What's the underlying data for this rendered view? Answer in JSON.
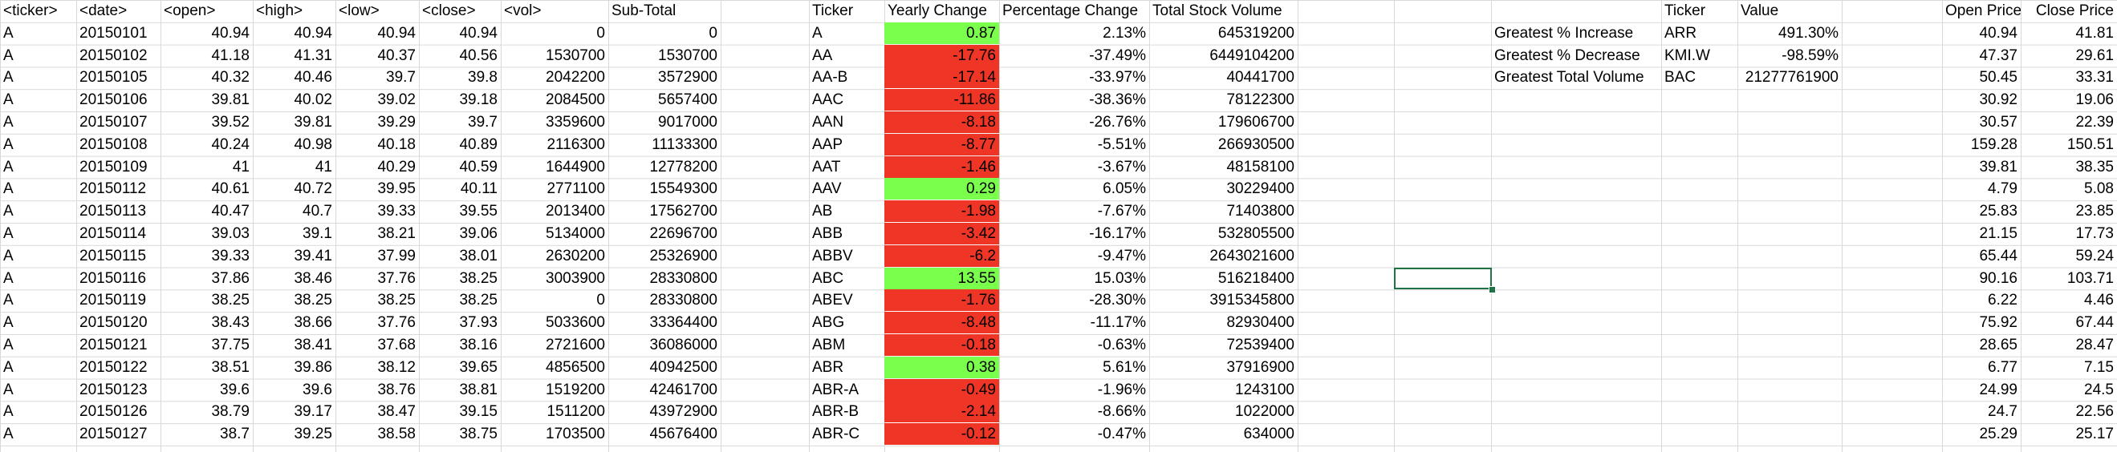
{
  "stock_headers": [
    "<ticker>",
    "<date>",
    "<open>",
    "<high>",
    "<low>",
    "<close>",
    "<vol>",
    "Sub-Total"
  ],
  "stock_rows": [
    [
      "A",
      "20150101",
      "40.94",
      "40.94",
      "40.94",
      "40.94",
      "0",
      "0"
    ],
    [
      "A",
      "20150102",
      "41.18",
      "41.31",
      "40.37",
      "40.56",
      "1530700",
      "1530700"
    ],
    [
      "A",
      "20150105",
      "40.32",
      "40.46",
      "39.7",
      "39.8",
      "2042200",
      "3572900"
    ],
    [
      "A",
      "20150106",
      "39.81",
      "40.02",
      "39.02",
      "39.18",
      "2084500",
      "5657400"
    ],
    [
      "A",
      "20150107",
      "39.52",
      "39.81",
      "39.29",
      "39.7",
      "3359600",
      "9017000"
    ],
    [
      "A",
      "20150108",
      "40.24",
      "40.98",
      "40.18",
      "40.89",
      "2116300",
      "11133300"
    ],
    [
      "A",
      "20150109",
      "41",
      "41",
      "40.29",
      "40.59",
      "1644900",
      "12778200"
    ],
    [
      "A",
      "20150112",
      "40.61",
      "40.72",
      "39.95",
      "40.11",
      "2771100",
      "15549300"
    ],
    [
      "A",
      "20150113",
      "40.47",
      "40.7",
      "39.33",
      "39.55",
      "2013400",
      "17562700"
    ],
    [
      "A",
      "20150114",
      "39.03",
      "39.1",
      "38.21",
      "39.06",
      "5134000",
      "22696700"
    ],
    [
      "A",
      "20150115",
      "39.33",
      "39.41",
      "37.99",
      "38.01",
      "2630200",
      "25326900"
    ],
    [
      "A",
      "20150116",
      "37.86",
      "38.46",
      "37.76",
      "38.25",
      "3003900",
      "28330800"
    ],
    [
      "A",
      "20150119",
      "38.25",
      "38.25",
      "38.25",
      "38.25",
      "0",
      "28330800"
    ],
    [
      "A",
      "20150120",
      "38.43",
      "38.66",
      "37.76",
      "37.93",
      "5033600",
      "33364400"
    ],
    [
      "A",
      "20150121",
      "37.75",
      "38.41",
      "37.68",
      "38.16",
      "2721600",
      "36086000"
    ],
    [
      "A",
      "20150122",
      "38.51",
      "39.86",
      "38.12",
      "39.65",
      "4856500",
      "40942500"
    ],
    [
      "A",
      "20150123",
      "39.6",
      "39.6",
      "38.76",
      "38.81",
      "1519200",
      "42461700"
    ],
    [
      "A",
      "20150126",
      "38.79",
      "39.17",
      "38.47",
      "39.15",
      "1511200",
      "43972900"
    ],
    [
      "A",
      "20150127",
      "38.7",
      "39.25",
      "38.58",
      "38.75",
      "1703500",
      "45676400"
    ]
  ],
  "summary_headers": [
    "Ticker",
    "Yearly Change",
    "Percentage Change",
    "Total Stock Volume"
  ],
  "summary_rows": [
    [
      "A",
      "0.87",
      "2.13%",
      "645319200"
    ],
    [
      "AA",
      "-17.76",
      "-37.49%",
      "6449104200"
    ],
    [
      "AA-B",
      "-17.14",
      "-33.97%",
      "40441700"
    ],
    [
      "AAC",
      "-11.86",
      "-38.36%",
      "78122300"
    ],
    [
      "AAN",
      "-8.18",
      "-26.76%",
      "179606700"
    ],
    [
      "AAP",
      "-8.77",
      "-5.51%",
      "266930500"
    ],
    [
      "AAT",
      "-1.46",
      "-3.67%",
      "48158100"
    ],
    [
      "AAV",
      "0.29",
      "6.05%",
      "30229400"
    ],
    [
      "AB",
      "-1.98",
      "-7.67%",
      "71403800"
    ],
    [
      "ABB",
      "-3.42",
      "-16.17%",
      "532805500"
    ],
    [
      "ABBV",
      "-6.2",
      "-9.47%",
      "2643021600"
    ],
    [
      "ABC",
      "13.55",
      "15.03%",
      "516218400"
    ],
    [
      "ABEV",
      "-1.76",
      "-28.30%",
      "3915345800"
    ],
    [
      "ABG",
      "-8.48",
      "-11.17%",
      "82930400"
    ],
    [
      "ABM",
      "-0.18",
      "-0.63%",
      "72539400"
    ],
    [
      "ABR",
      "0.38",
      "5.61%",
      "37916900"
    ],
    [
      "ABR-A",
      "-0.49",
      "-1.96%",
      "1243100"
    ],
    [
      "ABR-B",
      "-2.14",
      "-8.66%",
      "1022000"
    ],
    [
      "ABR-C",
      "-0.12",
      "-0.47%",
      "634000"
    ]
  ],
  "greatest_headers": [
    "Ticker",
    "Value"
  ],
  "greatest_rows": [
    [
      "Greatest % Increase",
      "ARR",
      "491.30%"
    ],
    [
      "Greatest % Decrease",
      "KMI.W",
      "-98.59%"
    ],
    [
      "Greatest Total Volume",
      "BAC",
      "21277761900"
    ]
  ],
  "price_headers": [
    "Open Price",
    "Close Price"
  ],
  "price_rows": [
    [
      "40.94",
      "41.81"
    ],
    [
      "47.37",
      "29.61"
    ],
    [
      "50.45",
      "33.31"
    ],
    [
      "30.92",
      "19.06"
    ],
    [
      "30.57",
      "22.39"
    ],
    [
      "159.28",
      "150.51"
    ],
    [
      "39.81",
      "38.35"
    ],
    [
      "4.79",
      "5.08"
    ],
    [
      "25.83",
      "23.85"
    ],
    [
      "21.15",
      "17.73"
    ],
    [
      "65.44",
      "59.24"
    ],
    [
      "90.16",
      "103.71"
    ],
    [
      "6.22",
      "4.46"
    ],
    [
      "75.92",
      "67.44"
    ],
    [
      "28.65",
      "28.47"
    ],
    [
      "6.77",
      "7.15"
    ],
    [
      "24.99",
      "24.5"
    ],
    [
      "24.7",
      "22.56"
    ],
    [
      "25.29",
      "25.17"
    ]
  ],
  "colors": {
    "positive": "#7aff4d",
    "negative": "#ee3526",
    "gridline": "#d9d9d9",
    "selection": "#217346"
  }
}
